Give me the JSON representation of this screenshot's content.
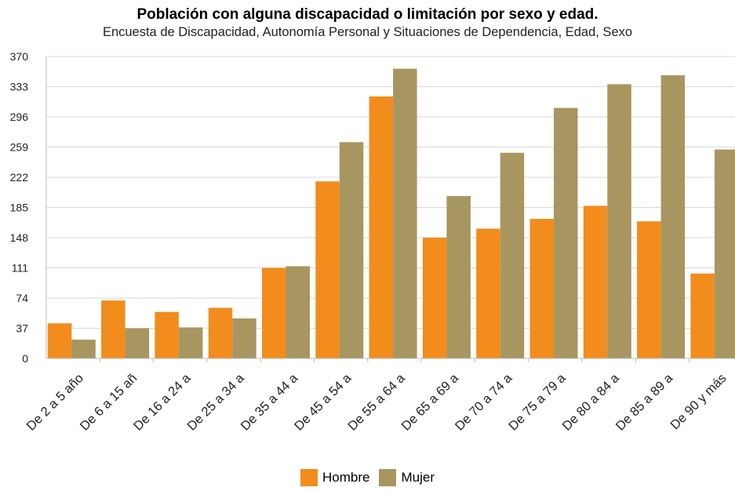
{
  "chart_data": {
    "type": "bar",
    "title": "Población con alguna discapacidad o limitación por sexo y edad.",
    "subtitle": "Encuesta de Discapacidad, Autonomía Personal y Situaciones de Dependencia, Edad, Sexo",
    "xlabel": "",
    "ylabel": "",
    "ylim": [
      0,
      370
    ],
    "yticks": [
      0,
      37,
      74,
      111,
      148,
      185,
      222,
      259,
      296,
      333,
      370
    ],
    "grid": true,
    "legend_position": "bottom",
    "categories": [
      "De 2 a 5 año",
      "De 6 a 15 añ",
      "De 16 a 24 a",
      "De 25 a 34 a",
      "De 35 a 44 a",
      "De 45 a 54 a",
      "De 55 a 64 a",
      "De 65 a 69 a",
      "De 70 a 74 a",
      "De 75 a 79 a",
      "De 80 a 84 a",
      "De 85 a 89 a",
      "De 90 y más"
    ],
    "series": [
      {
        "name": "Hombre",
        "color": "#f28c1c",
        "values": [
          43,
          71,
          57,
          62,
          111,
          217,
          321,
          148,
          159,
          171,
          187,
          168,
          104
        ]
      },
      {
        "name": "Mujer",
        "color": "#a89660",
        "values": [
          23,
          37,
          38,
          49,
          113,
          265,
          355,
          199,
          252,
          307,
          336,
          347,
          256
        ]
      }
    ]
  }
}
